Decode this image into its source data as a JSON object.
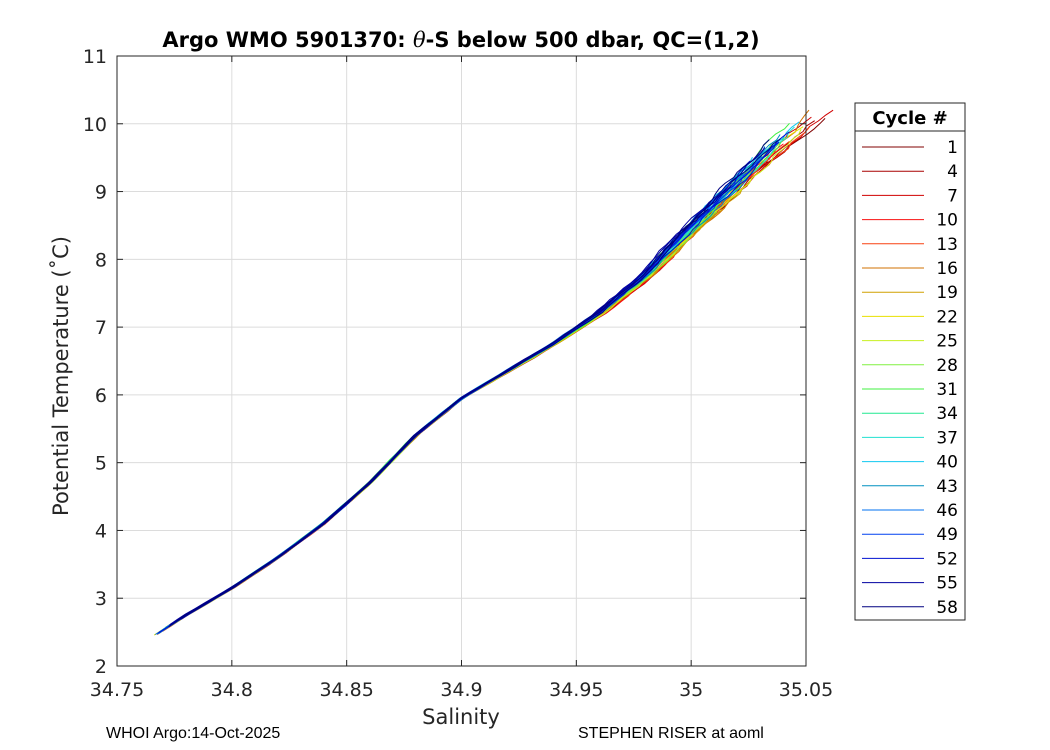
{
  "chart_data": {
    "type": "line",
    "title": "Argo WMO 5901370: θ-S below 500 dbar,  QC=(1,2)",
    "title_parts": {
      "prefix": "Argo WMO 5901370: ",
      "theta": "θ",
      "suffix": "-S below 500 dbar,  QC=(1,2)"
    },
    "xlabel": "Salinity",
    "ylabel": "Potential Temperature (˚C)",
    "xlim": [
      34.75,
      35.05
    ],
    "ylim": [
      2,
      11
    ],
    "xticks": [
      34.75,
      34.8,
      34.85,
      34.9,
      34.95,
      35,
      35.05
    ],
    "xtick_labels": [
      "34.75",
      "34.8",
      "34.85",
      "34.9",
      "34.95",
      "35",
      "35.05"
    ],
    "yticks": [
      2,
      3,
      4,
      5,
      6,
      7,
      8,
      9,
      10,
      11
    ],
    "ytick_labels": [
      "2",
      "3",
      "4",
      "5",
      "6",
      "7",
      "8",
      "9",
      "10",
      "11"
    ],
    "grid": true,
    "legend": {
      "title": "Cycle #",
      "location": "right-outside",
      "entries": [
        {
          "label": "1",
          "color": "#800000"
        },
        {
          "label": "4",
          "color": "#a80000"
        },
        {
          "label": "7",
          "color": "#d00000"
        },
        {
          "label": "10",
          "color": "#f81010"
        },
        {
          "label": "13",
          "color": "#f84010"
        },
        {
          "label": "16",
          "color": "#d07000"
        },
        {
          "label": "19",
          "color": "#d0a000"
        },
        {
          "label": "22",
          "color": "#e8e000"
        },
        {
          "label": "25",
          "color": "#c8f020"
        },
        {
          "label": "28",
          "color": "#80f040"
        },
        {
          "label": "31",
          "color": "#40f040"
        },
        {
          "label": "34",
          "color": "#20e890"
        },
        {
          "label": "37",
          "color": "#20e0d0"
        },
        {
          "label": "40",
          "color": "#10c8f0"
        },
        {
          "label": "43",
          "color": "#0090c0"
        },
        {
          "label": "46",
          "color": "#0070f0"
        },
        {
          "label": "49",
          "color": "#0040f0"
        },
        {
          "label": "52",
          "color": "#0010d0"
        },
        {
          "label": "55",
          "color": "#0000a0"
        },
        {
          "label": "58",
          "color": "#000080"
        }
      ]
    },
    "series_envelope": {
      "description_points": "mean theta-S curve below 500 dbar",
      "x": [
        34.765,
        34.78,
        34.8,
        34.82,
        34.84,
        34.86,
        34.88,
        34.9,
        34.92,
        34.94,
        34.96,
        34.98,
        35.0,
        35.02,
        35.035
      ],
      "y": [
        2.42,
        2.75,
        3.15,
        3.6,
        4.1,
        4.7,
        5.4,
        5.95,
        6.35,
        6.75,
        7.2,
        7.75,
        8.45,
        9.1,
        9.6
      ]
    }
  },
  "footer": {
    "left": "WHOI Argo:14-Oct-2025",
    "right": "STEPHEN RISER at aoml"
  }
}
